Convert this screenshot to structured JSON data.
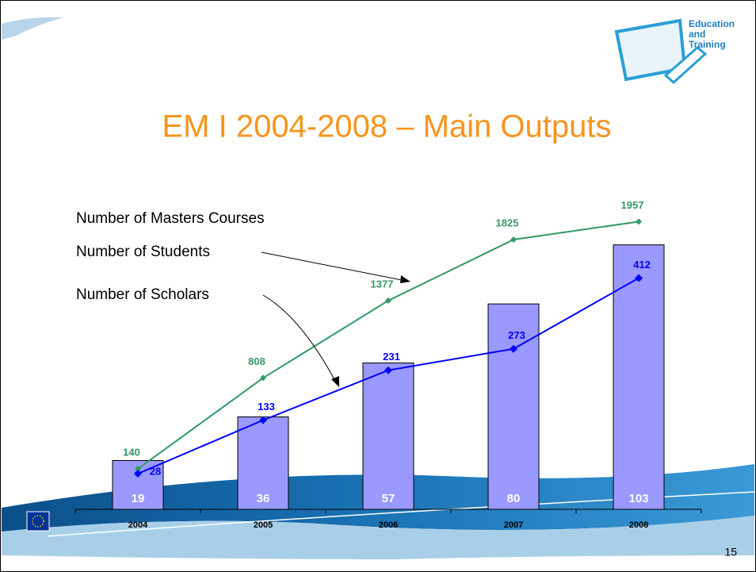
{
  "header": {
    "title": "EM I 2004-2008 – Main Outputs",
    "logo_text": [
      "Education",
      "and",
      "Training"
    ]
  },
  "page_number": "15",
  "chart_data": {
    "type": "bar-line",
    "categories": [
      "2004",
      "2005",
      "2006",
      "2007",
      "2008"
    ],
    "ylim": [
      0,
      110
    ],
    "y2lim": [
      0,
      2000
    ],
    "y3lim": [
      0,
      500
    ],
    "series": [
      {
        "name": "Number of Masters Courses",
        "type": "bar",
        "color": "#9999ff",
        "values": [
          19,
          36,
          57,
          80,
          103
        ]
      },
      {
        "name": "Number of Students",
        "type": "line",
        "axis": "y2",
        "color": "#339966",
        "values": [
          140,
          808,
          1377,
          1825,
          1957
        ]
      },
      {
        "name": "Number of Scholars",
        "type": "line",
        "axis": "y3",
        "color": "#0000ff",
        "values": [
          28,
          133,
          231,
          273,
          412
        ]
      }
    ]
  }
}
